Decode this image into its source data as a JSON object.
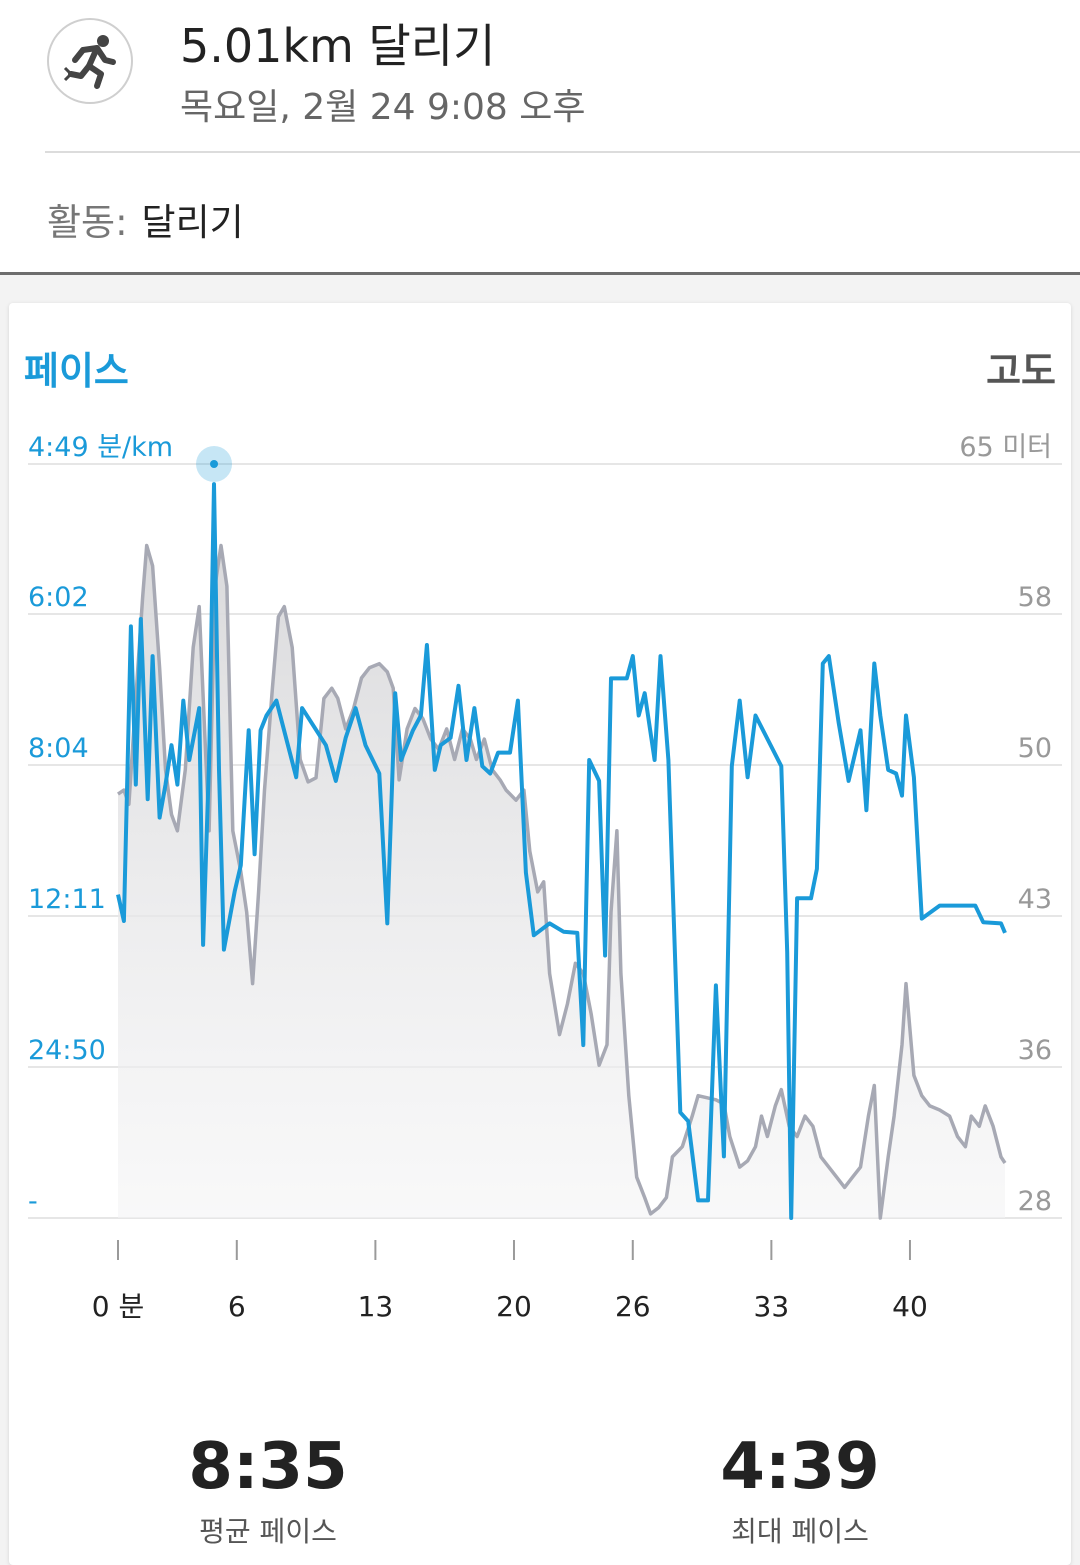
{
  "header": {
    "icon": "running-person-icon",
    "title": "5.01km 달리기",
    "subtitle": "목요일, 2월 24 9:08 오후"
  },
  "activity": {
    "label": "활동:",
    "value": "달리기"
  },
  "chart": {
    "title_left": "페이스",
    "title_right": "고도",
    "colors": {
      "pace": "#1a9ad9",
      "altitude": "#a7a9b4",
      "altitude_fill": "#e3e3e5"
    }
  },
  "chart_data": {
    "type": "line",
    "x_tick_labels": [
      "0 분",
      "6",
      "13",
      "20",
      "26",
      "33",
      "40"
    ],
    "x_ticks_minutes": [
      0,
      6,
      13,
      20,
      26,
      33,
      40
    ],
    "xlim": [
      0,
      43
    ],
    "left_axis_tick_labels": [
      "4:49 분/km",
      "6:02",
      "8:04",
      "12:11",
      "24:50",
      "-"
    ],
    "right_axis_tick_labels": [
      "65 미터",
      "58",
      "50",
      "43",
      "36",
      "28"
    ],
    "right_axis_range_m": [
      28,
      65
    ],
    "series": [
      {
        "name": "페이스",
        "axis": "left",
        "unit": "min/km",
        "points": [
          [
            0.0,
            11.6
          ],
          [
            0.3,
            12.6
          ],
          [
            0.65,
            6.2
          ],
          [
            0.9,
            8.6
          ],
          [
            1.15,
            6.1
          ],
          [
            1.5,
            9.0
          ],
          [
            1.75,
            6.6
          ],
          [
            2.1,
            9.5
          ],
          [
            2.4,
            8.6
          ],
          [
            2.7,
            7.8
          ],
          [
            3.0,
            8.6
          ],
          [
            3.3,
            7.2
          ],
          [
            3.6,
            8.0
          ],
          [
            4.1,
            7.3
          ],
          [
            4.3,
            14.6
          ],
          [
            4.6,
            8.0
          ],
          [
            4.85,
            4.98
          ],
          [
            5.1,
            8.2
          ],
          [
            5.35,
            15.0
          ],
          [
            5.9,
            11.5
          ],
          [
            6.2,
            10.8
          ],
          [
            6.6,
            7.6
          ],
          [
            6.9,
            10.5
          ],
          [
            7.2,
            7.6
          ],
          [
            7.5,
            7.4
          ],
          [
            8.0,
            7.2
          ],
          [
            9.0,
            8.4
          ],
          [
            9.3,
            7.3
          ],
          [
            10.5,
            7.8
          ],
          [
            11.0,
            8.5
          ],
          [
            11.5,
            7.7
          ],
          [
            12.0,
            7.3
          ],
          [
            12.5,
            7.8
          ],
          [
            13.2,
            8.3
          ],
          [
            13.6,
            12.8
          ],
          [
            14.0,
            7.1
          ],
          [
            14.3,
            8.0
          ],
          [
            14.9,
            7.6
          ],
          [
            15.3,
            7.4
          ],
          [
            15.6,
            6.45
          ],
          [
            16.0,
            8.2
          ],
          [
            16.3,
            7.8
          ],
          [
            16.8,
            7.7
          ],
          [
            17.2,
            7.0
          ],
          [
            17.6,
            8.0
          ],
          [
            18.0,
            7.3
          ],
          [
            18.4,
            8.1
          ],
          [
            18.8,
            8.3
          ],
          [
            19.2,
            7.9
          ],
          [
            19.8,
            7.9
          ],
          [
            20.2,
            7.2
          ],
          [
            20.6,
            11.0
          ],
          [
            21.0,
            13.8
          ],
          [
            21.8,
            12.8
          ],
          [
            22.5,
            13.5
          ],
          [
            23.2,
            13.6
          ],
          [
            23.5,
            23.0
          ],
          [
            23.8,
            8.0
          ],
          [
            24.3,
            8.5
          ],
          [
            24.6,
            15.5
          ],
          [
            24.9,
            6.9
          ],
          [
            25.7,
            6.9
          ],
          [
            26.0,
            6.6
          ],
          [
            26.3,
            7.4
          ],
          [
            26.6,
            7.1
          ],
          [
            27.1,
            8.0
          ],
          [
            27.4,
            6.6
          ],
          [
            27.8,
            8.0
          ],
          [
            28.4,
            30.0
          ],
          [
            28.8,
            31.0
          ],
          [
            29.3,
            40.0
          ],
          [
            29.8,
            40.0
          ],
          [
            30.2,
            18.0
          ],
          [
            30.6,
            35.0
          ],
          [
            31.0,
            8.1
          ],
          [
            31.4,
            7.2
          ],
          [
            31.8,
            8.4
          ],
          [
            32.2,
            7.4
          ],
          [
            33.5,
            8.1
          ],
          [
            33.8,
            15.2
          ],
          [
            34.0,
            42.0
          ],
          [
            34.3,
            11.7
          ],
          [
            35.0,
            11.7
          ],
          [
            35.3,
            10.9
          ],
          [
            35.6,
            6.7
          ],
          [
            35.9,
            6.6
          ],
          [
            36.4,
            7.5
          ],
          [
            36.9,
            8.5
          ],
          [
            37.5,
            7.6
          ],
          [
            37.8,
            9.3
          ],
          [
            38.2,
            6.7
          ],
          [
            38.5,
            7.4
          ],
          [
            38.9,
            8.2
          ],
          [
            39.3,
            8.3
          ],
          [
            39.6,
            8.9
          ],
          [
            39.8,
            7.4
          ],
          [
            40.2,
            8.4
          ],
          [
            40.6,
            12.4
          ],
          [
            41.5,
            11.9
          ],
          [
            43.3,
            11.9
          ],
          [
            43.7,
            12.7
          ],
          [
            44.6,
            12.8
          ],
          [
            44.8,
            13.6
          ]
        ]
      },
      {
        "name": "고도",
        "axis": "right",
        "unit": "m",
        "points": [
          [
            0.0,
            48.8
          ],
          [
            0.3,
            49.0
          ],
          [
            0.55,
            48.3
          ],
          [
            0.9,
            53.5
          ],
          [
            1.25,
            58.5
          ],
          [
            1.45,
            61.0
          ],
          [
            1.75,
            60.0
          ],
          [
            2.1,
            55.0
          ],
          [
            2.4,
            50.0
          ],
          [
            2.7,
            47.8
          ],
          [
            3.0,
            47.0
          ],
          [
            3.4,
            50.0
          ],
          [
            3.8,
            56.0
          ],
          [
            4.1,
            58.0
          ],
          [
            4.35,
            52.5
          ],
          [
            4.6,
            47.0
          ],
          [
            4.9,
            59.0
          ],
          [
            5.2,
            61.0
          ],
          [
            5.5,
            59.0
          ],
          [
            5.8,
            47.0
          ],
          [
            6.2,
            45.0
          ],
          [
            6.5,
            43.0
          ],
          [
            6.8,
            39.5
          ],
          [
            7.1,
            44.0
          ],
          [
            7.4,
            49.0
          ],
          [
            7.8,
            54.0
          ],
          [
            8.1,
            57.5
          ],
          [
            8.4,
            58.0
          ],
          [
            8.8,
            56.0
          ],
          [
            9.2,
            50.5
          ],
          [
            9.6,
            49.4
          ],
          [
            10.0,
            49.6
          ],
          [
            10.4,
            53.5
          ],
          [
            10.8,
            54.0
          ],
          [
            11.1,
            53.5
          ],
          [
            11.5,
            52.0
          ],
          [
            11.9,
            53.0
          ],
          [
            12.3,
            54.5
          ],
          [
            12.7,
            55.0
          ],
          [
            13.2,
            55.2
          ],
          [
            13.6,
            54.8
          ],
          [
            13.9,
            54.0
          ],
          [
            14.2,
            49.5
          ],
          [
            14.6,
            52.0
          ],
          [
            15.0,
            53.0
          ],
          [
            15.4,
            52.5
          ],
          [
            15.8,
            51.5
          ],
          [
            16.2,
            51.0
          ],
          [
            16.6,
            52.0
          ],
          [
            17.0,
            50.5
          ],
          [
            17.4,
            52.0
          ],
          [
            17.8,
            51.5
          ],
          [
            18.1,
            50.5
          ],
          [
            18.5,
            51.5
          ],
          [
            18.9,
            50.0
          ],
          [
            19.3,
            49.5
          ],
          [
            19.6,
            49.0
          ],
          [
            20.1,
            48.5
          ],
          [
            20.5,
            49.0
          ],
          [
            20.8,
            46.0
          ],
          [
            21.2,
            44.0
          ],
          [
            21.5,
            44.5
          ],
          [
            21.8,
            40.0
          ],
          [
            22.3,
            37.0
          ],
          [
            22.7,
            38.5
          ],
          [
            23.1,
            40.5
          ],
          [
            23.5,
            40.0
          ],
          [
            23.9,
            38.0
          ],
          [
            24.3,
            35.5
          ],
          [
            24.7,
            36.5
          ],
          [
            24.9,
            43.0
          ],
          [
            25.2,
            47.0
          ],
          [
            25.4,
            40.0
          ],
          [
            25.8,
            34.0
          ],
          [
            26.2,
            30.0
          ],
          [
            26.6,
            29.0
          ],
          [
            26.9,
            28.2
          ],
          [
            27.3,
            28.5
          ],
          [
            27.7,
            29.0
          ],
          [
            28.0,
            31.0
          ],
          [
            28.5,
            31.5
          ],
          [
            29.0,
            33.0
          ],
          [
            29.3,
            34.0
          ],
          [
            30.2,
            33.8
          ],
          [
            30.6,
            33.6
          ],
          [
            30.9,
            32.0
          ],
          [
            31.4,
            30.5
          ],
          [
            31.8,
            30.8
          ],
          [
            32.2,
            31.5
          ],
          [
            32.5,
            33.0
          ],
          [
            32.8,
            32.0
          ],
          [
            33.2,
            33.5
          ],
          [
            33.5,
            34.3
          ],
          [
            33.9,
            32.5
          ],
          [
            34.3,
            32.0
          ],
          [
            34.7,
            33.0
          ],
          [
            35.1,
            32.5
          ],
          [
            35.5,
            31.0
          ],
          [
            35.9,
            30.5
          ],
          [
            36.3,
            30.0
          ],
          [
            36.7,
            29.5
          ],
          [
            37.1,
            30.0
          ],
          [
            37.5,
            30.5
          ],
          [
            37.9,
            33.0
          ],
          [
            38.2,
            34.5
          ],
          [
            38.5,
            28.0
          ],
          [
            38.9,
            31.0
          ],
          [
            39.2,
            33.0
          ],
          [
            39.6,
            36.5
          ],
          [
            39.8,
            39.5
          ],
          [
            40.2,
            35.0
          ],
          [
            40.6,
            34.0
          ],
          [
            41.0,
            33.5
          ],
          [
            41.5,
            33.3
          ],
          [
            42.0,
            33.0
          ],
          [
            42.4,
            32.0
          ],
          [
            42.8,
            31.5
          ],
          [
            43.1,
            33.0
          ],
          [
            43.5,
            32.5
          ],
          [
            43.8,
            33.5
          ],
          [
            44.2,
            32.5
          ],
          [
            44.6,
            31.0
          ],
          [
            44.8,
            30.7
          ]
        ]
      }
    ],
    "highlight_point": {
      "series": "페이스",
      "x": 4.85
    },
    "grid": "horizontal"
  },
  "stats": {
    "avg_value": "8:35",
    "avg_label": "평균 페이스",
    "max_value": "4:39",
    "max_label": "최대 페이스"
  }
}
